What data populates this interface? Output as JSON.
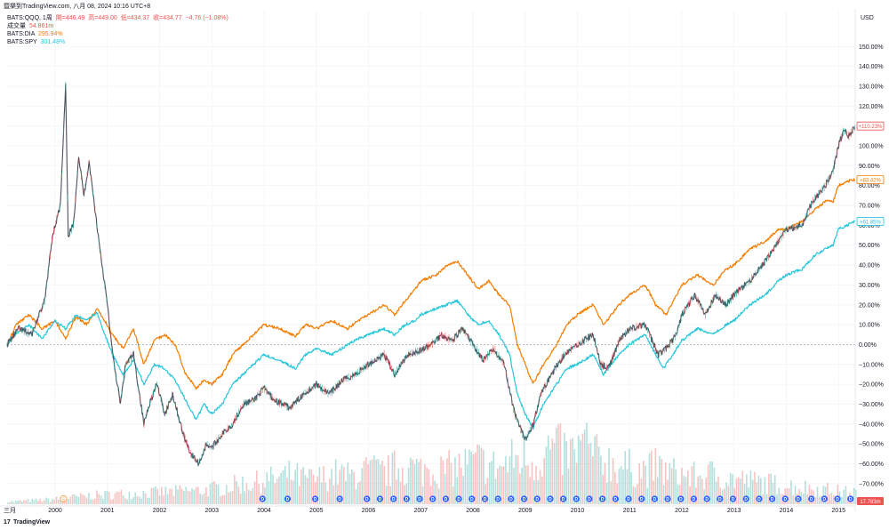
{
  "header": {
    "title": "暨樂到TradingView.com, 八月 08, 2024 10:16 UTC+8"
  },
  "legend": {
    "main": {
      "symbol": "BATS:QQQ, 1周",
      "o": "開=446.49",
      "h": "高=449.00",
      "l": "低=434.37",
      "c": "收=434.77",
      "chg": "−4.76 (−1.08%)"
    },
    "volume": {
      "label": "成交量",
      "value": "54.861m"
    },
    "dia": {
      "label": "BATS:DIA",
      "value": "295.94%"
    },
    "spy": {
      "label": "BATS:SPY",
      "value": "301.48%"
    }
  },
  "footer": {
    "brand": "TradingView"
  },
  "colors": {
    "qqq_up": "#26a69a",
    "qqq_down": "#ef5350",
    "qqq_line": "#4a4f5c",
    "dia": "#f57c00",
    "spy": "#26c6da",
    "grid": "#eef0f3",
    "zero": "#b2b5be",
    "event": "#2962ff",
    "event_orange": "#f7a350"
  },
  "chart_data": {
    "type": "line",
    "y_unit": "%",
    "ylim": [
      -75,
      160
    ],
    "xlim": [
      1999.08,
      2015.32
    ],
    "y_ticks": [
      "150.00%",
      "140.00%",
      "130.00%",
      "120.00%",
      "110.00%",
      "100.00%",
      "90.00%",
      "80.00%",
      "70.00%",
      "60.00%",
      "50.00%",
      "40.00%",
      "30.00%",
      "20.00%",
      "10.00%",
      "0.00%",
      "−10.00%",
      "−20.00%",
      "−30.00%",
      "−40.00%",
      "−50.00%",
      "−60.00%",
      "−70.00%"
    ],
    "y_tick_values": [
      150,
      140,
      130,
      120,
      110,
      100,
      90,
      80,
      70,
      60,
      50,
      40,
      30,
      20,
      10,
      0,
      -10,
      -20,
      -30,
      -40,
      -50,
      -60,
      -70
    ],
    "y_axis_label": "USD",
    "x_ticks": [
      {
        "label": "三月",
        "x": 1999.08
      },
      {
        "label": "2000",
        "x": 2000.0
      },
      {
        "label": "2001",
        "x": 2001.0
      },
      {
        "label": "2002",
        "x": 2002.0
      },
      {
        "label": "2003",
        "x": 2003.0
      },
      {
        "label": "2004",
        "x": 2004.0
      },
      {
        "label": "2005",
        "x": 2005.0
      },
      {
        "label": "2006",
        "x": 2006.0
      },
      {
        "label": "2007",
        "x": 2007.0
      },
      {
        "label": "2008",
        "x": 2008.0
      },
      {
        "label": "2009",
        "x": 2009.0
      },
      {
        "label": "2010",
        "x": 2010.0
      },
      {
        "label": "2011",
        "x": 2011.0
      },
      {
        "label": "2012",
        "x": 2012.0
      },
      {
        "label": "2013",
        "x": 2013.0
      },
      {
        "label": "2014",
        "x": 2014.0
      },
      {
        "label": "2015",
        "x": 2015.0
      }
    ],
    "grid": true,
    "series": [
      {
        "name": "BATS:QQQ",
        "key": "qqq",
        "last_label": "+110.23%",
        "points": [
          [
            1999.08,
            0
          ],
          [
            1999.3,
            8
          ],
          [
            1999.55,
            5
          ],
          [
            1999.8,
            22
          ],
          [
            1999.95,
            55
          ],
          [
            2000.1,
            70
          ],
          [
            2000.2,
            130
          ],
          [
            2000.25,
            55
          ],
          [
            2000.35,
            60
          ],
          [
            2000.45,
            95
          ],
          [
            2000.55,
            75
          ],
          [
            2000.65,
            92
          ],
          [
            2000.8,
            60
          ],
          [
            2000.9,
            40
          ],
          [
            2001.0,
            20
          ],
          [
            2001.1,
            -5
          ],
          [
            2001.25,
            -30
          ],
          [
            2001.35,
            -10
          ],
          [
            2001.5,
            -5
          ],
          [
            2001.7,
            -40
          ],
          [
            2001.8,
            -30
          ],
          [
            2001.95,
            -20
          ],
          [
            2002.1,
            -35
          ],
          [
            2002.25,
            -25
          ],
          [
            2002.45,
            -45
          ],
          [
            2002.6,
            -55
          ],
          [
            2002.75,
            -60
          ],
          [
            2002.9,
            -50
          ],
          [
            2003.0,
            -52
          ],
          [
            2003.2,
            -45
          ],
          [
            2003.4,
            -40
          ],
          [
            2003.6,
            -30
          ],
          [
            2003.8,
            -28
          ],
          [
            2004.0,
            -22
          ],
          [
            2004.2,
            -28
          ],
          [
            2004.5,
            -32
          ],
          [
            2004.75,
            -25
          ],
          [
            2005.0,
            -20
          ],
          [
            2005.25,
            -25
          ],
          [
            2005.5,
            -18
          ],
          [
            2005.75,
            -15
          ],
          [
            2006.0,
            -10
          ],
          [
            2006.3,
            -5
          ],
          [
            2006.5,
            -15
          ],
          [
            2006.75,
            -5
          ],
          [
            2007.0,
            -3
          ],
          [
            2007.2,
            0
          ],
          [
            2007.4,
            5
          ],
          [
            2007.6,
            2
          ],
          [
            2007.8,
            8
          ],
          [
            2008.0,
            0
          ],
          [
            2008.2,
            -8
          ],
          [
            2008.4,
            -2
          ],
          [
            2008.6,
            -10
          ],
          [
            2008.8,
            -35
          ],
          [
            2008.95,
            -45
          ],
          [
            2009.0,
            -48
          ],
          [
            2009.15,
            -40
          ],
          [
            2009.3,
            -25
          ],
          [
            2009.5,
            -15
          ],
          [
            2009.75,
            -5
          ],
          [
            2010.0,
            0
          ],
          [
            2010.3,
            5
          ],
          [
            2010.45,
            -10
          ],
          [
            2010.6,
            -12
          ],
          [
            2010.8,
            2
          ],
          [
            2011.0,
            8
          ],
          [
            2011.3,
            10
          ],
          [
            2011.55,
            -5
          ],
          [
            2011.7,
            -2
          ],
          [
            2011.9,
            5
          ],
          [
            2012.0,
            15
          ],
          [
            2012.25,
            25
          ],
          [
            2012.45,
            15
          ],
          [
            2012.65,
            25
          ],
          [
            2012.85,
            20
          ],
          [
            2013.0,
            25
          ],
          [
            2013.3,
            32
          ],
          [
            2013.6,
            42
          ],
          [
            2013.85,
            52
          ],
          [
            2014.0,
            58
          ],
          [
            2014.3,
            60
          ],
          [
            2014.5,
            72
          ],
          [
            2014.75,
            80
          ],
          [
            2014.9,
            88
          ],
          [
            2015.0,
            100
          ],
          [
            2015.1,
            108
          ],
          [
            2015.2,
            105
          ],
          [
            2015.32,
            110
          ]
        ]
      },
      {
        "name": "BATS:DIA",
        "key": "dia",
        "last_label": "+83.42%",
        "points": [
          [
            1999.08,
            0
          ],
          [
            1999.25,
            10
          ],
          [
            1999.5,
            15
          ],
          [
            1999.75,
            8
          ],
          [
            2000.0,
            12
          ],
          [
            2000.2,
            3
          ],
          [
            2000.4,
            14
          ],
          [
            2000.6,
            10
          ],
          [
            2000.8,
            18
          ],
          [
            2000.95,
            12
          ],
          [
            2001.1,
            5
          ],
          [
            2001.3,
            -2
          ],
          [
            2001.5,
            8
          ],
          [
            2001.7,
            -10
          ],
          [
            2001.9,
            2
          ],
          [
            2002.1,
            5
          ],
          [
            2002.3,
            0
          ],
          [
            2002.5,
            -15
          ],
          [
            2002.7,
            -22
          ],
          [
            2002.85,
            -18
          ],
          [
            2003.0,
            -20
          ],
          [
            2003.2,
            -15
          ],
          [
            2003.4,
            -5
          ],
          [
            2003.6,
            0
          ],
          [
            2003.8,
            5
          ],
          [
            2004.0,
            10
          ],
          [
            2004.3,
            8
          ],
          [
            2004.6,
            4
          ],
          [
            2004.8,
            10
          ],
          [
            2005.0,
            8
          ],
          [
            2005.3,
            12
          ],
          [
            2005.6,
            8
          ],
          [
            2005.8,
            12
          ],
          [
            2006.0,
            15
          ],
          [
            2006.3,
            20
          ],
          [
            2006.5,
            15
          ],
          [
            2006.7,
            22
          ],
          [
            2006.9,
            28
          ],
          [
            2007.0,
            32
          ],
          [
            2007.3,
            35
          ],
          [
            2007.5,
            40
          ],
          [
            2007.7,
            42
          ],
          [
            2007.9,
            35
          ],
          [
            2008.1,
            28
          ],
          [
            2008.3,
            32
          ],
          [
            2008.5,
            25
          ],
          [
            2008.7,
            20
          ],
          [
            2008.85,
            0
          ],
          [
            2009.0,
            -10
          ],
          [
            2009.15,
            -20
          ],
          [
            2009.35,
            -10
          ],
          [
            2009.6,
            0
          ],
          [
            2009.8,
            10
          ],
          [
            2010.0,
            15
          ],
          [
            2010.3,
            20
          ],
          [
            2010.5,
            10
          ],
          [
            2010.8,
            20
          ],
          [
            2011.0,
            25
          ],
          [
            2011.3,
            30
          ],
          [
            2011.5,
            20
          ],
          [
            2011.7,
            15
          ],
          [
            2011.9,
            25
          ],
          [
            2012.0,
            30
          ],
          [
            2012.3,
            35
          ],
          [
            2012.6,
            30
          ],
          [
            2012.85,
            38
          ],
          [
            2013.0,
            40
          ],
          [
            2013.3,
            48
          ],
          [
            2013.6,
            52
          ],
          [
            2013.85,
            58
          ],
          [
            2014.0,
            58
          ],
          [
            2014.3,
            62
          ],
          [
            2014.55,
            68
          ],
          [
            2014.75,
            72
          ],
          [
            2014.9,
            72
          ],
          [
            2015.0,
            80
          ],
          [
            2015.15,
            82
          ],
          [
            2015.32,
            83
          ]
        ]
      },
      {
        "name": "BATS:SPY",
        "key": "spy",
        "last_label": "+61.85%",
        "points": [
          [
            1999.08,
            0
          ],
          [
            1999.25,
            5
          ],
          [
            1999.5,
            10
          ],
          [
            1999.75,
            3
          ],
          [
            2000.0,
            12
          ],
          [
            2000.2,
            8
          ],
          [
            2000.4,
            15
          ],
          [
            2000.6,
            12
          ],
          [
            2000.8,
            16
          ],
          [
            2000.95,
            5
          ],
          [
            2001.1,
            -5
          ],
          [
            2001.3,
            -15
          ],
          [
            2001.5,
            -8
          ],
          [
            2001.7,
            -20
          ],
          [
            2001.9,
            -10
          ],
          [
            2002.1,
            -12
          ],
          [
            2002.3,
            -18
          ],
          [
            2002.5,
            -28
          ],
          [
            2002.7,
            -38
          ],
          [
            2002.85,
            -30
          ],
          [
            2003.0,
            -35
          ],
          [
            2003.2,
            -30
          ],
          [
            2003.4,
            -20
          ],
          [
            2003.6,
            -15
          ],
          [
            2003.8,
            -10
          ],
          [
            2004.0,
            -5
          ],
          [
            2004.3,
            -8
          ],
          [
            2004.6,
            -12
          ],
          [
            2004.8,
            -5
          ],
          [
            2005.0,
            -2
          ],
          [
            2005.3,
            -5
          ],
          [
            2005.6,
            0
          ],
          [
            2005.8,
            3
          ],
          [
            2006.0,
            5
          ],
          [
            2006.3,
            8
          ],
          [
            2006.5,
            5
          ],
          [
            2006.7,
            10
          ],
          [
            2006.9,
            12
          ],
          [
            2007.0,
            15
          ],
          [
            2007.3,
            18
          ],
          [
            2007.5,
            20
          ],
          [
            2007.7,
            22
          ],
          [
            2007.9,
            15
          ],
          [
            2008.1,
            10
          ],
          [
            2008.3,
            12
          ],
          [
            2008.5,
            5
          ],
          [
            2008.7,
            -5
          ],
          [
            2008.85,
            -25
          ],
          [
            2009.0,
            -35
          ],
          [
            2009.15,
            -42
          ],
          [
            2009.35,
            -30
          ],
          [
            2009.6,
            -20
          ],
          [
            2009.8,
            -12
          ],
          [
            2010.0,
            -10
          ],
          [
            2010.3,
            -5
          ],
          [
            2010.5,
            -15
          ],
          [
            2010.8,
            -5
          ],
          [
            2011.0,
            0
          ],
          [
            2011.3,
            5
          ],
          [
            2011.5,
            -5
          ],
          [
            2011.65,
            -12
          ],
          [
            2011.9,
            -2
          ],
          [
            2012.0,
            2
          ],
          [
            2012.3,
            8
          ],
          [
            2012.6,
            5
          ],
          [
            2012.85,
            10
          ],
          [
            2013.0,
            12
          ],
          [
            2013.3,
            20
          ],
          [
            2013.6,
            25
          ],
          [
            2013.85,
            32
          ],
          [
            2014.0,
            35
          ],
          [
            2014.3,
            38
          ],
          [
            2014.55,
            45
          ],
          [
            2014.75,
            48
          ],
          [
            2014.9,
            50
          ],
          [
            2015.0,
            58
          ],
          [
            2015.15,
            60
          ],
          [
            2015.32,
            62
          ]
        ]
      }
    ],
    "volume": {
      "label": "17.783m",
      "values": [
        0.04,
        0.05,
        0.06,
        0.07,
        0.08,
        0.1,
        0.12,
        0.14,
        0.15,
        0.16,
        0.17,
        0.18,
        0.18,
        0.2,
        0.2,
        0.22,
        0.22,
        0.24,
        0.26,
        0.3,
        0.34,
        0.35,
        0.4,
        0.42,
        0.48,
        0.42,
        0.4,
        0.45,
        0.5,
        0.45,
        0.52,
        0.55,
        0.5,
        0.6,
        0.62,
        0.55,
        0.58,
        0.55,
        0.6,
        0.65,
        0.7,
        0.62,
        0.6,
        0.75,
        0.72,
        0.7,
        0.9,
        0.85,
        0.8,
        1.0,
        0.75,
        0.7,
        0.62,
        0.58,
        0.55,
        0.6,
        0.52,
        0.5,
        0.45,
        0.45,
        0.5,
        0.42,
        0.4,
        0.38,
        0.35,
        0.33,
        0.3,
        0.28,
        0.26,
        0.25,
        0.22,
        0.2,
        0.2
      ],
      "max_value_note": "relative"
    },
    "events": {
      "orange_x": [
        2000.16
      ],
      "blue_x": [
        2003.97,
        2004.45,
        2004.98,
        2005.45,
        2005.97,
        2006.22,
        2006.48,
        2006.73,
        2006.98,
        2007.23,
        2007.48,
        2007.73,
        2007.98,
        2008.23,
        2008.48,
        2008.73,
        2008.98,
        2009.23,
        2009.48,
        2009.73,
        2009.98,
        2010.23,
        2010.48,
        2010.73,
        2010.98,
        2011.23,
        2011.48,
        2011.73,
        2011.98,
        2012.23,
        2012.48,
        2012.73,
        2012.98,
        2013.23,
        2013.48,
        2013.73,
        2013.98,
        2014.23,
        2014.48,
        2014.73,
        2014.98,
        2015.23
      ]
    }
  }
}
